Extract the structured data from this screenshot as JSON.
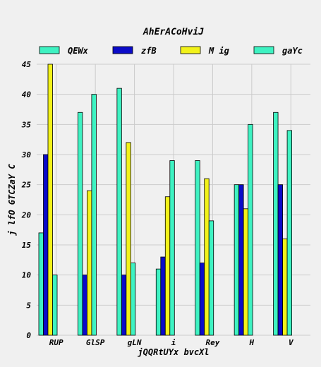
{
  "chart_data": {
    "type": "bar",
    "title": "AhErACoHviJ",
    "xlabel": "jQQRtUYx bvcXl",
    "ylabel": "j lfO GTCZaY C",
    "categories": [
      "RUP",
      "GlSP",
      "gLN",
      "i",
      "Rey",
      "H",
      "V"
    ],
    "ylim": [
      0,
      45
    ],
    "yticks": [
      0,
      5,
      10,
      15,
      20,
      25,
      30,
      35,
      40,
      45
    ],
    "grid": true,
    "legend_position": "top",
    "series": [
      {
        "name": "QEWx",
        "color": "#3ef2c2",
        "values": [
          17,
          37,
          41,
          11,
          29,
          25,
          37
        ]
      },
      {
        "name": "zfB",
        "color": "#0b0bc8",
        "values": [
          30,
          10,
          10,
          13,
          12,
          25,
          25
        ]
      },
      {
        "name": "M ig",
        "color": "#f2f21a",
        "values": [
          45,
          24,
          32,
          23,
          26,
          21,
          16
        ]
      },
      {
        "name": "gaYc",
        "color": "#3ef2c2",
        "values": [
          10,
          40,
          12,
          29,
          19,
          35,
          34
        ]
      }
    ]
  }
}
